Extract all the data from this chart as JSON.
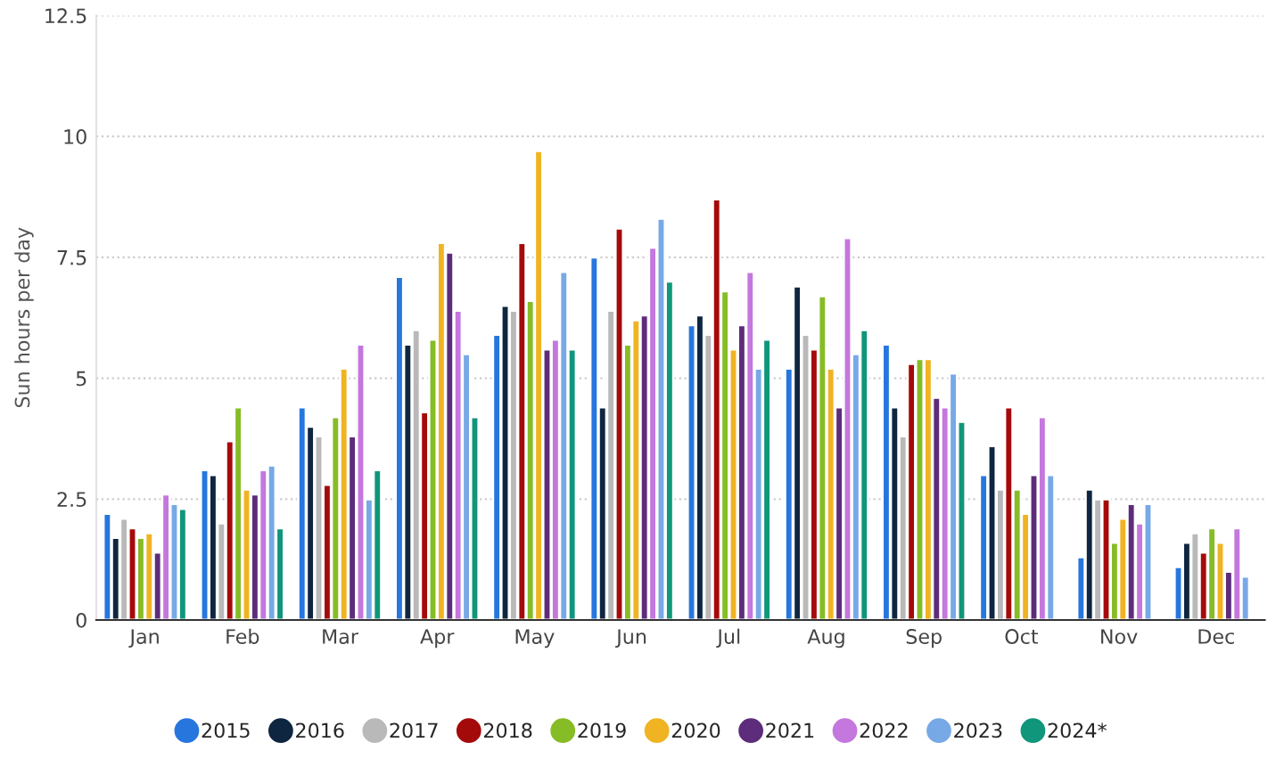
{
  "chart_data": {
    "type": "bar",
    "ylabel": "Sun hours per day",
    "categories": [
      "Jan",
      "Feb",
      "Mar",
      "Apr",
      "May",
      "Jun",
      "Jul",
      "Aug",
      "Sep",
      "Oct",
      "Nov",
      "Dec"
    ],
    "series": [
      {
        "name": "2015",
        "color": "#2776de",
        "values": [
          2.2,
          3.1,
          4.4,
          7.1,
          5.9,
          7.5,
          6.1,
          5.2,
          5.7,
          3.0,
          1.3,
          1.1
        ]
      },
      {
        "name": "2016",
        "color": "#0f2640",
        "values": [
          1.7,
          3.0,
          4.0,
          5.7,
          6.5,
          4.4,
          6.3,
          6.9,
          4.4,
          3.6,
          2.7,
          1.6
        ]
      },
      {
        "name": "2017",
        "color": "#b9b9b9",
        "values": [
          2.1,
          2.0,
          3.8,
          6.0,
          6.4,
          6.4,
          5.9,
          5.9,
          3.8,
          2.7,
          2.5,
          1.8
        ]
      },
      {
        "name": "2018",
        "color": "#a50a0a",
        "values": [
          1.9,
          3.7,
          2.8,
          4.3,
          7.8,
          8.1,
          8.7,
          5.6,
          5.3,
          4.4,
          2.5,
          1.4
        ]
      },
      {
        "name": "2019",
        "color": "#86bc25",
        "values": [
          1.7,
          4.4,
          4.2,
          5.8,
          6.6,
          5.7,
          6.8,
          6.7,
          5.4,
          2.7,
          1.6,
          1.9
        ]
      },
      {
        "name": "2020",
        "color": "#f0b322",
        "values": [
          1.8,
          2.7,
          5.2,
          7.8,
          9.7,
          6.2,
          5.6,
          5.2,
          5.4,
          2.2,
          2.1,
          1.6
        ]
      },
      {
        "name": "2021",
        "color": "#5d2c7a",
        "values": [
          1.4,
          2.6,
          3.8,
          7.6,
          5.6,
          6.3,
          6.1,
          4.4,
          4.6,
          3.0,
          2.4,
          1.0
        ]
      },
      {
        "name": "2022",
        "color": "#c477dd",
        "values": [
          2.6,
          3.1,
          5.7,
          6.4,
          5.8,
          7.7,
          7.2,
          7.9,
          4.4,
          4.2,
          2.0,
          1.9
        ]
      },
      {
        "name": "2023",
        "color": "#77a9e6",
        "values": [
          2.4,
          3.2,
          2.5,
          5.5,
          7.2,
          8.3,
          5.2,
          5.5,
          5.1,
          3.0,
          2.4,
          0.9
        ]
      },
      {
        "name": "2024*",
        "color": "#10967a",
        "values": [
          2.3,
          1.9,
          3.1,
          4.2,
          5.6,
          7.0,
          5.8,
          6.0,
          4.1,
          null,
          null,
          null
        ]
      }
    ],
    "ylim": [
      0,
      12.5
    ],
    "yticks": [
      0,
      2.5,
      5,
      7.5,
      10,
      12.5
    ],
    "grid": "y",
    "legend": "bottom"
  }
}
